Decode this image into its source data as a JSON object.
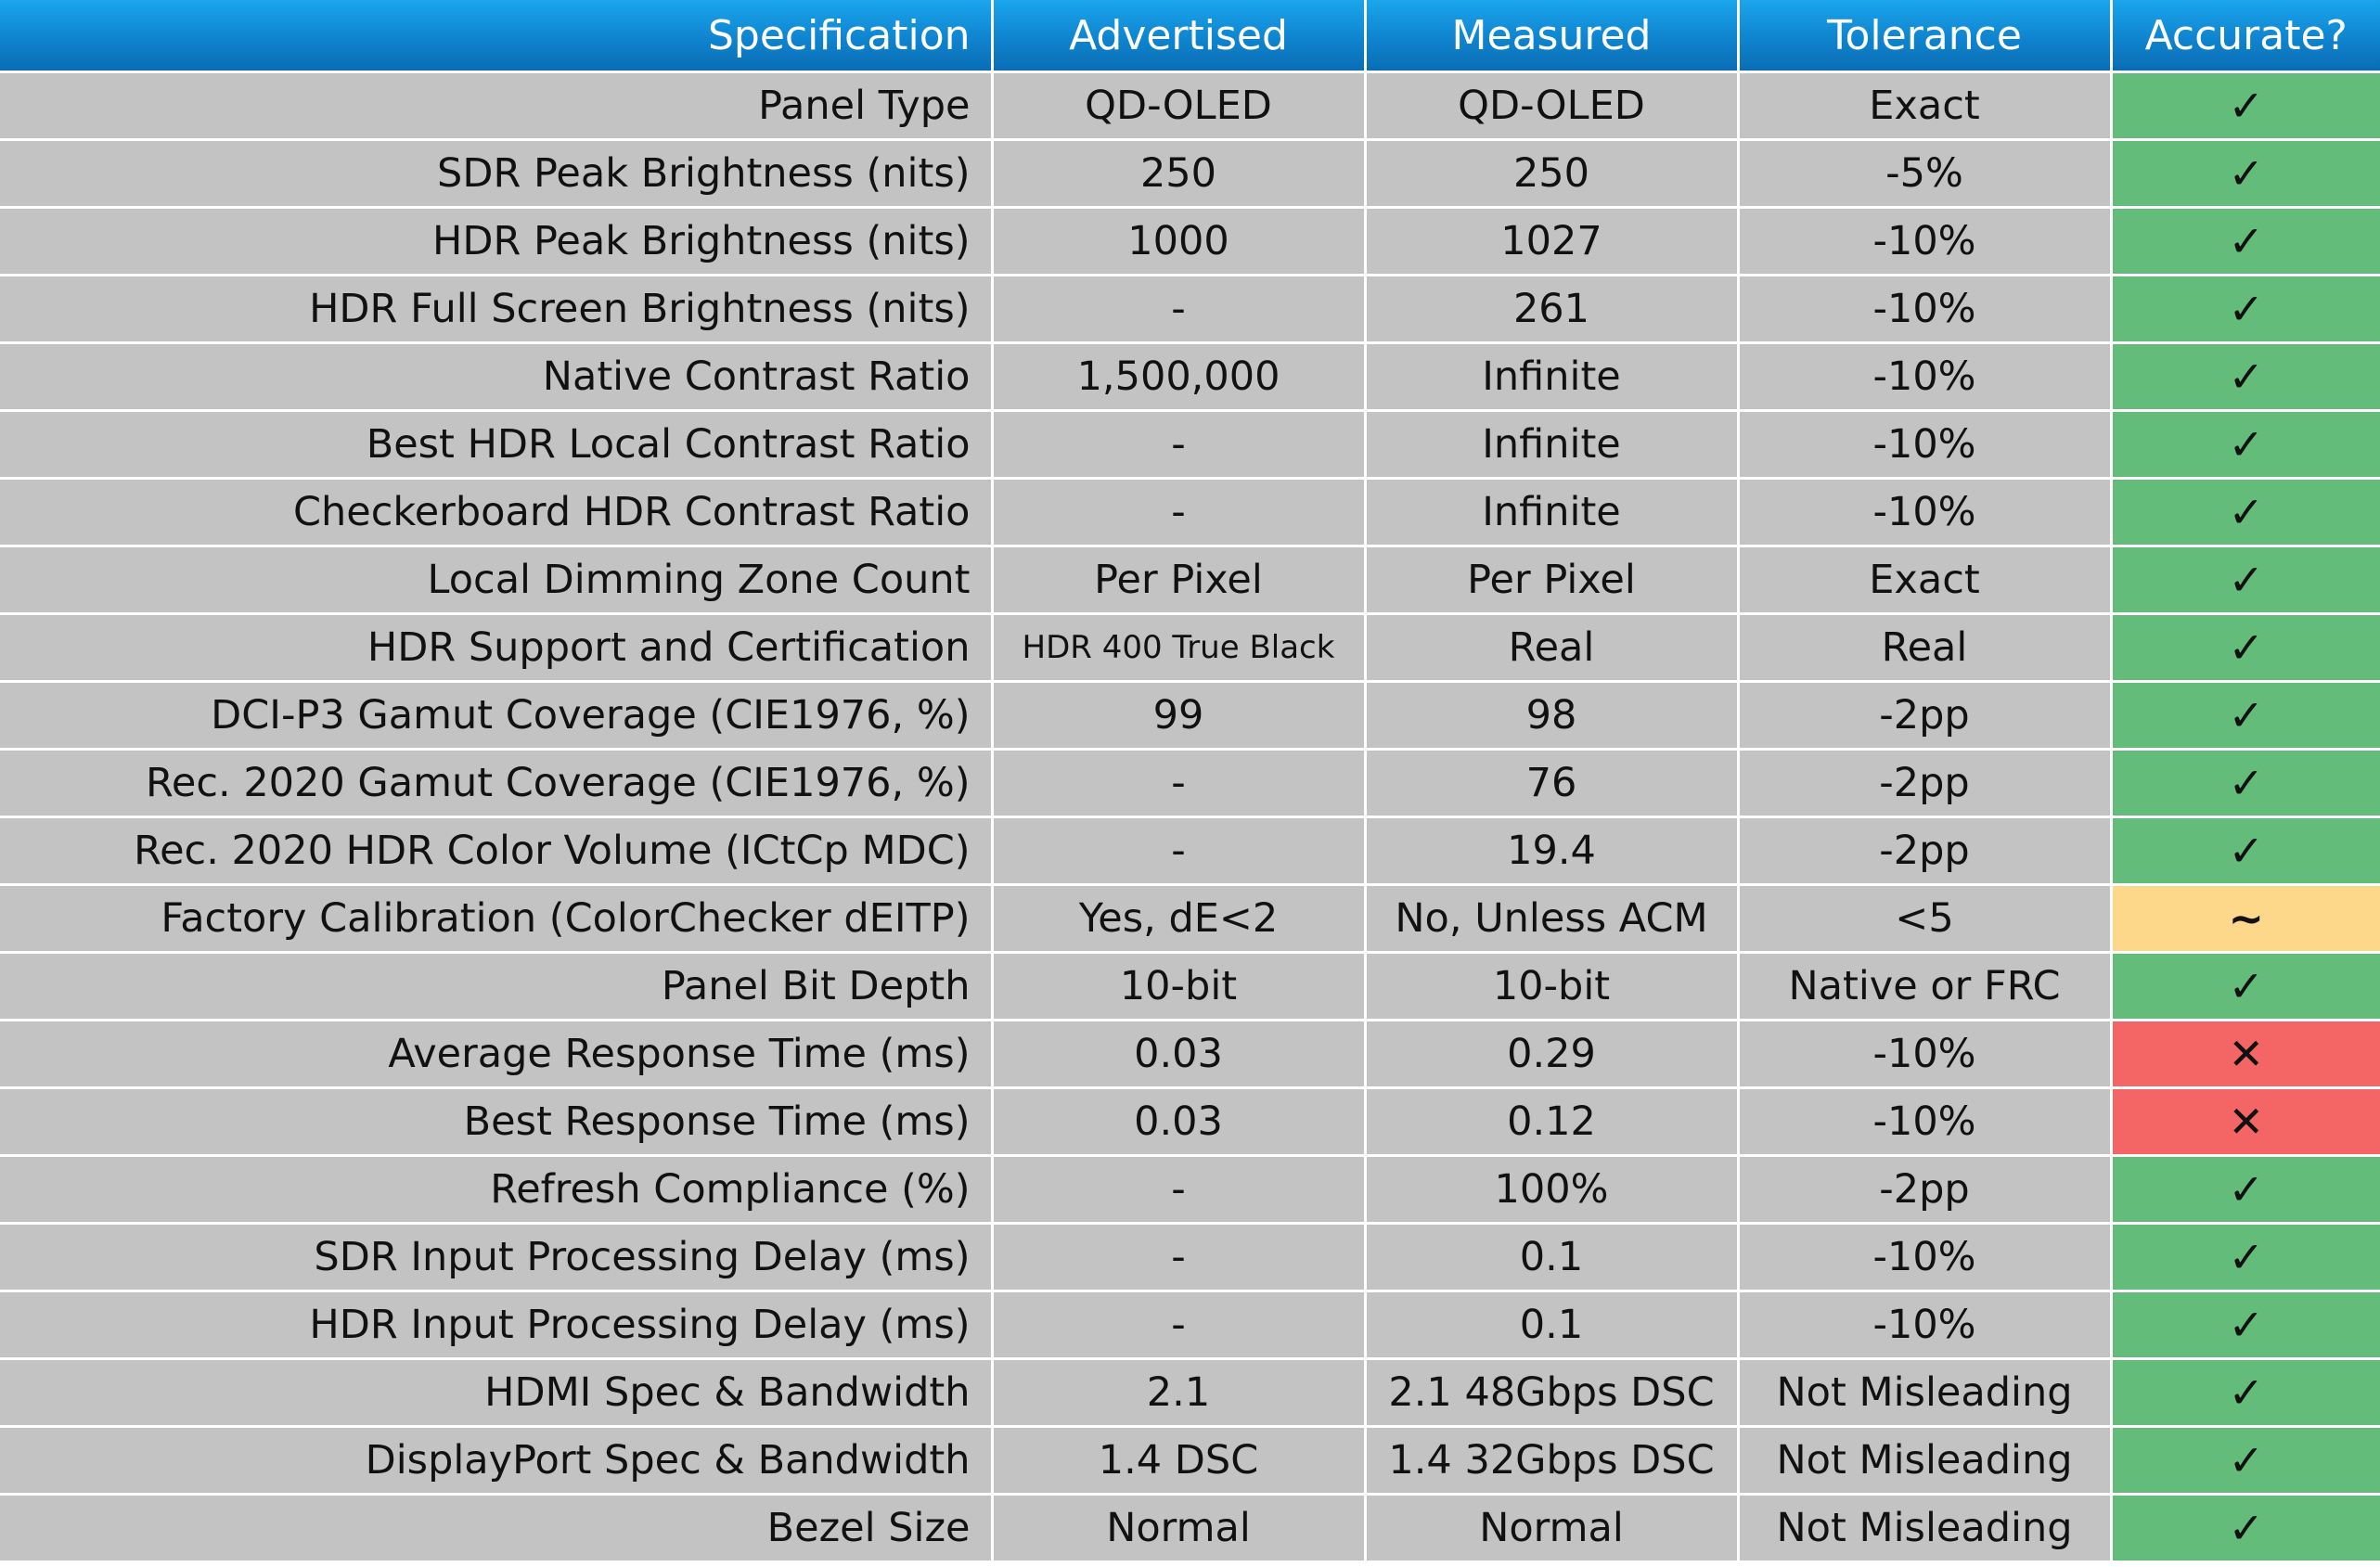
{
  "headers": {
    "specification": "Specification",
    "advertised": "Advertised",
    "measured": "Measured",
    "tolerance": "Tolerance",
    "accurate": "Accurate?"
  },
  "colors": {
    "header_blue": "#0f84cf",
    "cell_gray": "#c3c3c3",
    "pass_green": "#63bc79",
    "warn_yellow": "#fdd88a",
    "fail_red": "#f36665"
  },
  "rows": [
    {
      "spec": "Panel Type",
      "advertised": "QD-OLED",
      "measured": "QD-OLED",
      "tolerance": "Exact",
      "result": "✓",
      "status": "pass"
    },
    {
      "spec": "SDR Peak Brightness (nits)",
      "advertised": "250",
      "measured": "250",
      "tolerance": "-5%",
      "result": "✓",
      "status": "pass"
    },
    {
      "spec": "HDR Peak Brightness (nits)",
      "advertised": "1000",
      "measured": "1027",
      "tolerance": "-10%",
      "result": "✓",
      "status": "pass"
    },
    {
      "spec": "HDR Full Screen Brightness (nits)",
      "advertised": "-",
      "measured": "261",
      "tolerance": "-10%",
      "result": "✓",
      "status": "pass"
    },
    {
      "spec": "Native Contrast Ratio",
      "advertised": "1,500,000",
      "measured": "Infinite",
      "tolerance": "-10%",
      "result": "✓",
      "status": "pass"
    },
    {
      "spec": "Best HDR Local Contrast Ratio",
      "advertised": "-",
      "measured": "Infinite",
      "tolerance": "-10%",
      "result": "✓",
      "status": "pass"
    },
    {
      "spec": "Checkerboard HDR Contrast Ratio",
      "advertised": "-",
      "measured": "Infinite",
      "tolerance": "-10%",
      "result": "✓",
      "status": "pass"
    },
    {
      "spec": "Local Dimming Zone Count",
      "advertised": "Per Pixel",
      "measured": "Per Pixel",
      "tolerance": "Exact",
      "result": "✓",
      "status": "pass"
    },
    {
      "spec": "HDR Support and Certification",
      "advertised": "HDR 400 True Black",
      "measured": "Real",
      "tolerance": "Real",
      "result": "✓",
      "status": "pass"
    },
    {
      "spec": "DCI-P3 Gamut Coverage (CIE1976, %)",
      "advertised": "99",
      "measured": "98",
      "tolerance": "-2pp",
      "result": "✓",
      "status": "pass"
    },
    {
      "spec": "Rec. 2020 Gamut Coverage (CIE1976, %)",
      "advertised": "-",
      "measured": "76",
      "tolerance": "-2pp",
      "result": "✓",
      "status": "pass"
    },
    {
      "spec": "Rec. 2020 HDR Color Volume (ICtCp MDC)",
      "advertised": "-",
      "measured": "19.4",
      "tolerance": "-2pp",
      "result": "✓",
      "status": "pass"
    },
    {
      "spec": "Factory Calibration (ColorChecker dEITP)",
      "advertised": "Yes, dE<2",
      "measured": "No, Unless ACM",
      "tolerance": "<5",
      "result": "~",
      "status": "warn"
    },
    {
      "spec": "Panel Bit Depth",
      "advertised": "10-bit",
      "measured": "10-bit",
      "tolerance": "Native or FRC",
      "result": "✓",
      "status": "pass"
    },
    {
      "spec": "Average Response Time (ms)",
      "advertised": "0.03",
      "measured": "0.29",
      "tolerance": "-10%",
      "result": "✕",
      "status": "fail"
    },
    {
      "spec": "Best Response Time (ms)",
      "advertised": "0.03",
      "measured": "0.12",
      "tolerance": "-10%",
      "result": "✕",
      "status": "fail"
    },
    {
      "spec": "Refresh Compliance (%)",
      "advertised": "-",
      "measured": "100%",
      "tolerance": "-2pp",
      "result": "✓",
      "status": "pass"
    },
    {
      "spec": "SDR Input Processing Delay (ms)",
      "advertised": "-",
      "measured": "0.1",
      "tolerance": "-10%",
      "result": "✓",
      "status": "pass"
    },
    {
      "spec": "HDR Input Processing Delay (ms)",
      "advertised": "-",
      "measured": "0.1",
      "tolerance": "-10%",
      "result": "✓",
      "status": "pass"
    },
    {
      "spec": "HDMI Spec & Bandwidth",
      "advertised": "2.1",
      "measured": "2.1 48Gbps DSC",
      "tolerance": "Not Misleading",
      "result": "✓",
      "status": "pass"
    },
    {
      "spec": "DisplayPort Spec & Bandwidth",
      "advertised": "1.4 DSC",
      "measured": "1.4 32Gbps DSC",
      "tolerance": "Not Misleading",
      "result": "✓",
      "status": "pass"
    },
    {
      "spec": "Bezel Size",
      "advertised": "Normal",
      "measured": "Normal",
      "tolerance": "Not Misleading",
      "result": "✓",
      "status": "pass"
    }
  ]
}
